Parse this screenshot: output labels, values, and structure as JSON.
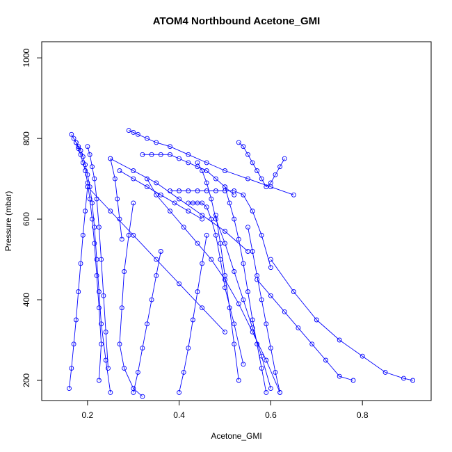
{
  "chart_data": {
    "type": "line",
    "title": "ATOM4 Northbound Acetone_GMI",
    "xlabel": "Acetone_GMI",
    "ylabel": "Pressure (mbar)",
    "xlim": [
      0.1,
      0.95
    ],
    "ylim": [
      1040,
      150
    ],
    "y_reversed": true,
    "x_ticks": [
      0.2,
      0.4,
      0.6,
      0.8
    ],
    "y_ticks": [
      200,
      400,
      600,
      800,
      1000
    ],
    "grid": false,
    "legend": "none",
    "color": "#0000ff",
    "series": [
      {
        "x": [
          0.165,
          0.17,
          0.175,
          0.18,
          0.185,
          0.19,
          0.195,
          0.2,
          0.205,
          0.21,
          0.215,
          0.22,
          0.225,
          0.23,
          0.225
        ],
        "y": [
          810,
          800,
          790,
          775,
          760,
          740,
          720,
          690,
          650,
          600,
          540,
          460,
          380,
          290,
          200
        ]
      },
      {
        "x": [
          0.175,
          0.18,
          0.185,
          0.19,
          0.195,
          0.2,
          0.205,
          0.21,
          0.215,
          0.22,
          0.225,
          0.23,
          0.24,
          0.25
        ],
        "y": [
          790,
          780,
          770,
          755,
          735,
          710,
          680,
          640,
          580,
          500,
          420,
          340,
          250,
          170
        ]
      },
      {
        "x": [
          0.2,
          0.205,
          0.21,
          0.215,
          0.22,
          0.225,
          0.23,
          0.235,
          0.24,
          0.245
        ],
        "y": [
          780,
          760,
          730,
          700,
          650,
          580,
          500,
          410,
          320,
          230
        ]
      },
      {
        "x": [
          0.16,
          0.165,
          0.17,
          0.175,
          0.18,
          0.185,
          0.19,
          0.195,
          0.2
        ],
        "y": [
          180,
          230,
          290,
          350,
          420,
          490,
          560,
          620,
          680
        ]
      },
      {
        "x": [
          0.29,
          0.3,
          0.31,
          0.33,
          0.35,
          0.38,
          0.42,
          0.46,
          0.5,
          0.55,
          0.6,
          0.65
        ],
        "y": [
          820,
          815,
          810,
          800,
          790,
          780,
          760,
          740,
          720,
          700,
          680,
          660
        ]
      },
      {
        "x": [
          0.32,
          0.34,
          0.36,
          0.38,
          0.4,
          0.42,
          0.44,
          0.46,
          0.48,
          0.5,
          0.52
        ],
        "y": [
          760,
          760,
          760,
          760,
          750,
          740,
          730,
          720,
          700,
          680,
          660
        ]
      },
      {
        "x": [
          0.38,
          0.4,
          0.42,
          0.44,
          0.46,
          0.48,
          0.5,
          0.52,
          0.54,
          0.56,
          0.58,
          0.6
        ],
        "y": [
          670,
          670,
          670,
          670,
          670,
          670,
          670,
          670,
          660,
          620,
          560,
          480
        ]
      },
      {
        "x": [
          0.42,
          0.43,
          0.44,
          0.45,
          0.46,
          0.47,
          0.48,
          0.49,
          0.5,
          0.52,
          0.54
        ],
        "y": [
          640,
          640,
          640,
          640,
          630,
          600,
          560,
          500,
          430,
          340,
          240
        ]
      },
      {
        "x": [
          0.44,
          0.45,
          0.46,
          0.47,
          0.48,
          0.5,
          0.52,
          0.54,
          0.56,
          0.58,
          0.6
        ],
        "y": [
          740,
          720,
          690,
          650,
          600,
          540,
          470,
          400,
          330,
          260,
          180
        ]
      },
      {
        "x": [
          0.53,
          0.54,
          0.55,
          0.56,
          0.57,
          0.58,
          0.59,
          0.6,
          0.61,
          0.62,
          0.63
        ],
        "y": [
          790,
          780,
          760,
          740,
          720,
          700,
          680,
          690,
          710,
          730,
          750
        ]
      },
      {
        "x": [
          0.5,
          0.51,
          0.52,
          0.53,
          0.54,
          0.55,
          0.56,
          0.57,
          0.58,
          0.59
        ],
        "y": [
          680,
          640,
          600,
          550,
          490,
          420,
          350,
          290,
          230,
          170
        ]
      },
      {
        "x": [
          0.33,
          0.35,
          0.38,
          0.41,
          0.44,
          0.47,
          0.5,
          0.53,
          0.56,
          0.59,
          0.62
        ],
        "y": [
          700,
          660,
          620,
          580,
          540,
          500,
          450,
          390,
          320,
          250,
          170
        ]
      },
      {
        "x": [
          0.3,
          0.29,
          0.28,
          0.275,
          0.27,
          0.28,
          0.3,
          0.32
        ],
        "y": [
          640,
          560,
          470,
          380,
          290,
          230,
          180,
          160
        ]
      },
      {
        "x": [
          0.36,
          0.35,
          0.34,
          0.33,
          0.32,
          0.31,
          0.3
        ],
        "y": [
          520,
          460,
          400,
          340,
          280,
          220,
          170
        ]
      },
      {
        "x": [
          0.46,
          0.45,
          0.44,
          0.43,
          0.42,
          0.41,
          0.4
        ],
        "y": [
          560,
          490,
          420,
          350,
          280,
          220,
          170
        ]
      },
      {
        "x": [
          0.48,
          0.49,
          0.5,
          0.51,
          0.52,
          0.53
        ],
        "y": [
          610,
          540,
          460,
          380,
          290,
          200
        ]
      },
      {
        "x": [
          0.25,
          0.26,
          0.265,
          0.27,
          0.275
        ],
        "y": [
          750,
          700,
          650,
          600,
          550
        ]
      },
      {
        "x": [
          0.25,
          0.3,
          0.35,
          0.4,
          0.45,
          0.5,
          0.55
        ],
        "y": [
          750,
          720,
          690,
          650,
          610,
          570,
          520
        ]
      },
      {
        "x": [
          0.57,
          0.6,
          0.63,
          0.66,
          0.69,
          0.72,
          0.75,
          0.78
        ],
        "y": [
          450,
          410,
          370,
          330,
          290,
          250,
          210,
          200
        ]
      },
      {
        "x": [
          0.6,
          0.65,
          0.7,
          0.75,
          0.8,
          0.85,
          0.89,
          0.91
        ],
        "y": [
          500,
          420,
          350,
          300,
          260,
          220,
          205,
          200
        ]
      },
      {
        "x": [
          0.55,
          0.56,
          0.57,
          0.58,
          0.59,
          0.6,
          0.61,
          0.62
        ],
        "y": [
          580,
          520,
          460,
          400,
          340,
          280,
          220,
          170
        ]
      },
      {
        "x": [
          0.2,
          0.25,
          0.3,
          0.35,
          0.4,
          0.45,
          0.5
        ],
        "y": [
          680,
          620,
          560,
          500,
          440,
          380,
          320
        ]
      },
      {
        "x": [
          0.27,
          0.3,
          0.33,
          0.36,
          0.39,
          0.42,
          0.45
        ],
        "y": [
          720,
          700,
          680,
          660,
          640,
          620,
          600
        ]
      }
    ]
  }
}
